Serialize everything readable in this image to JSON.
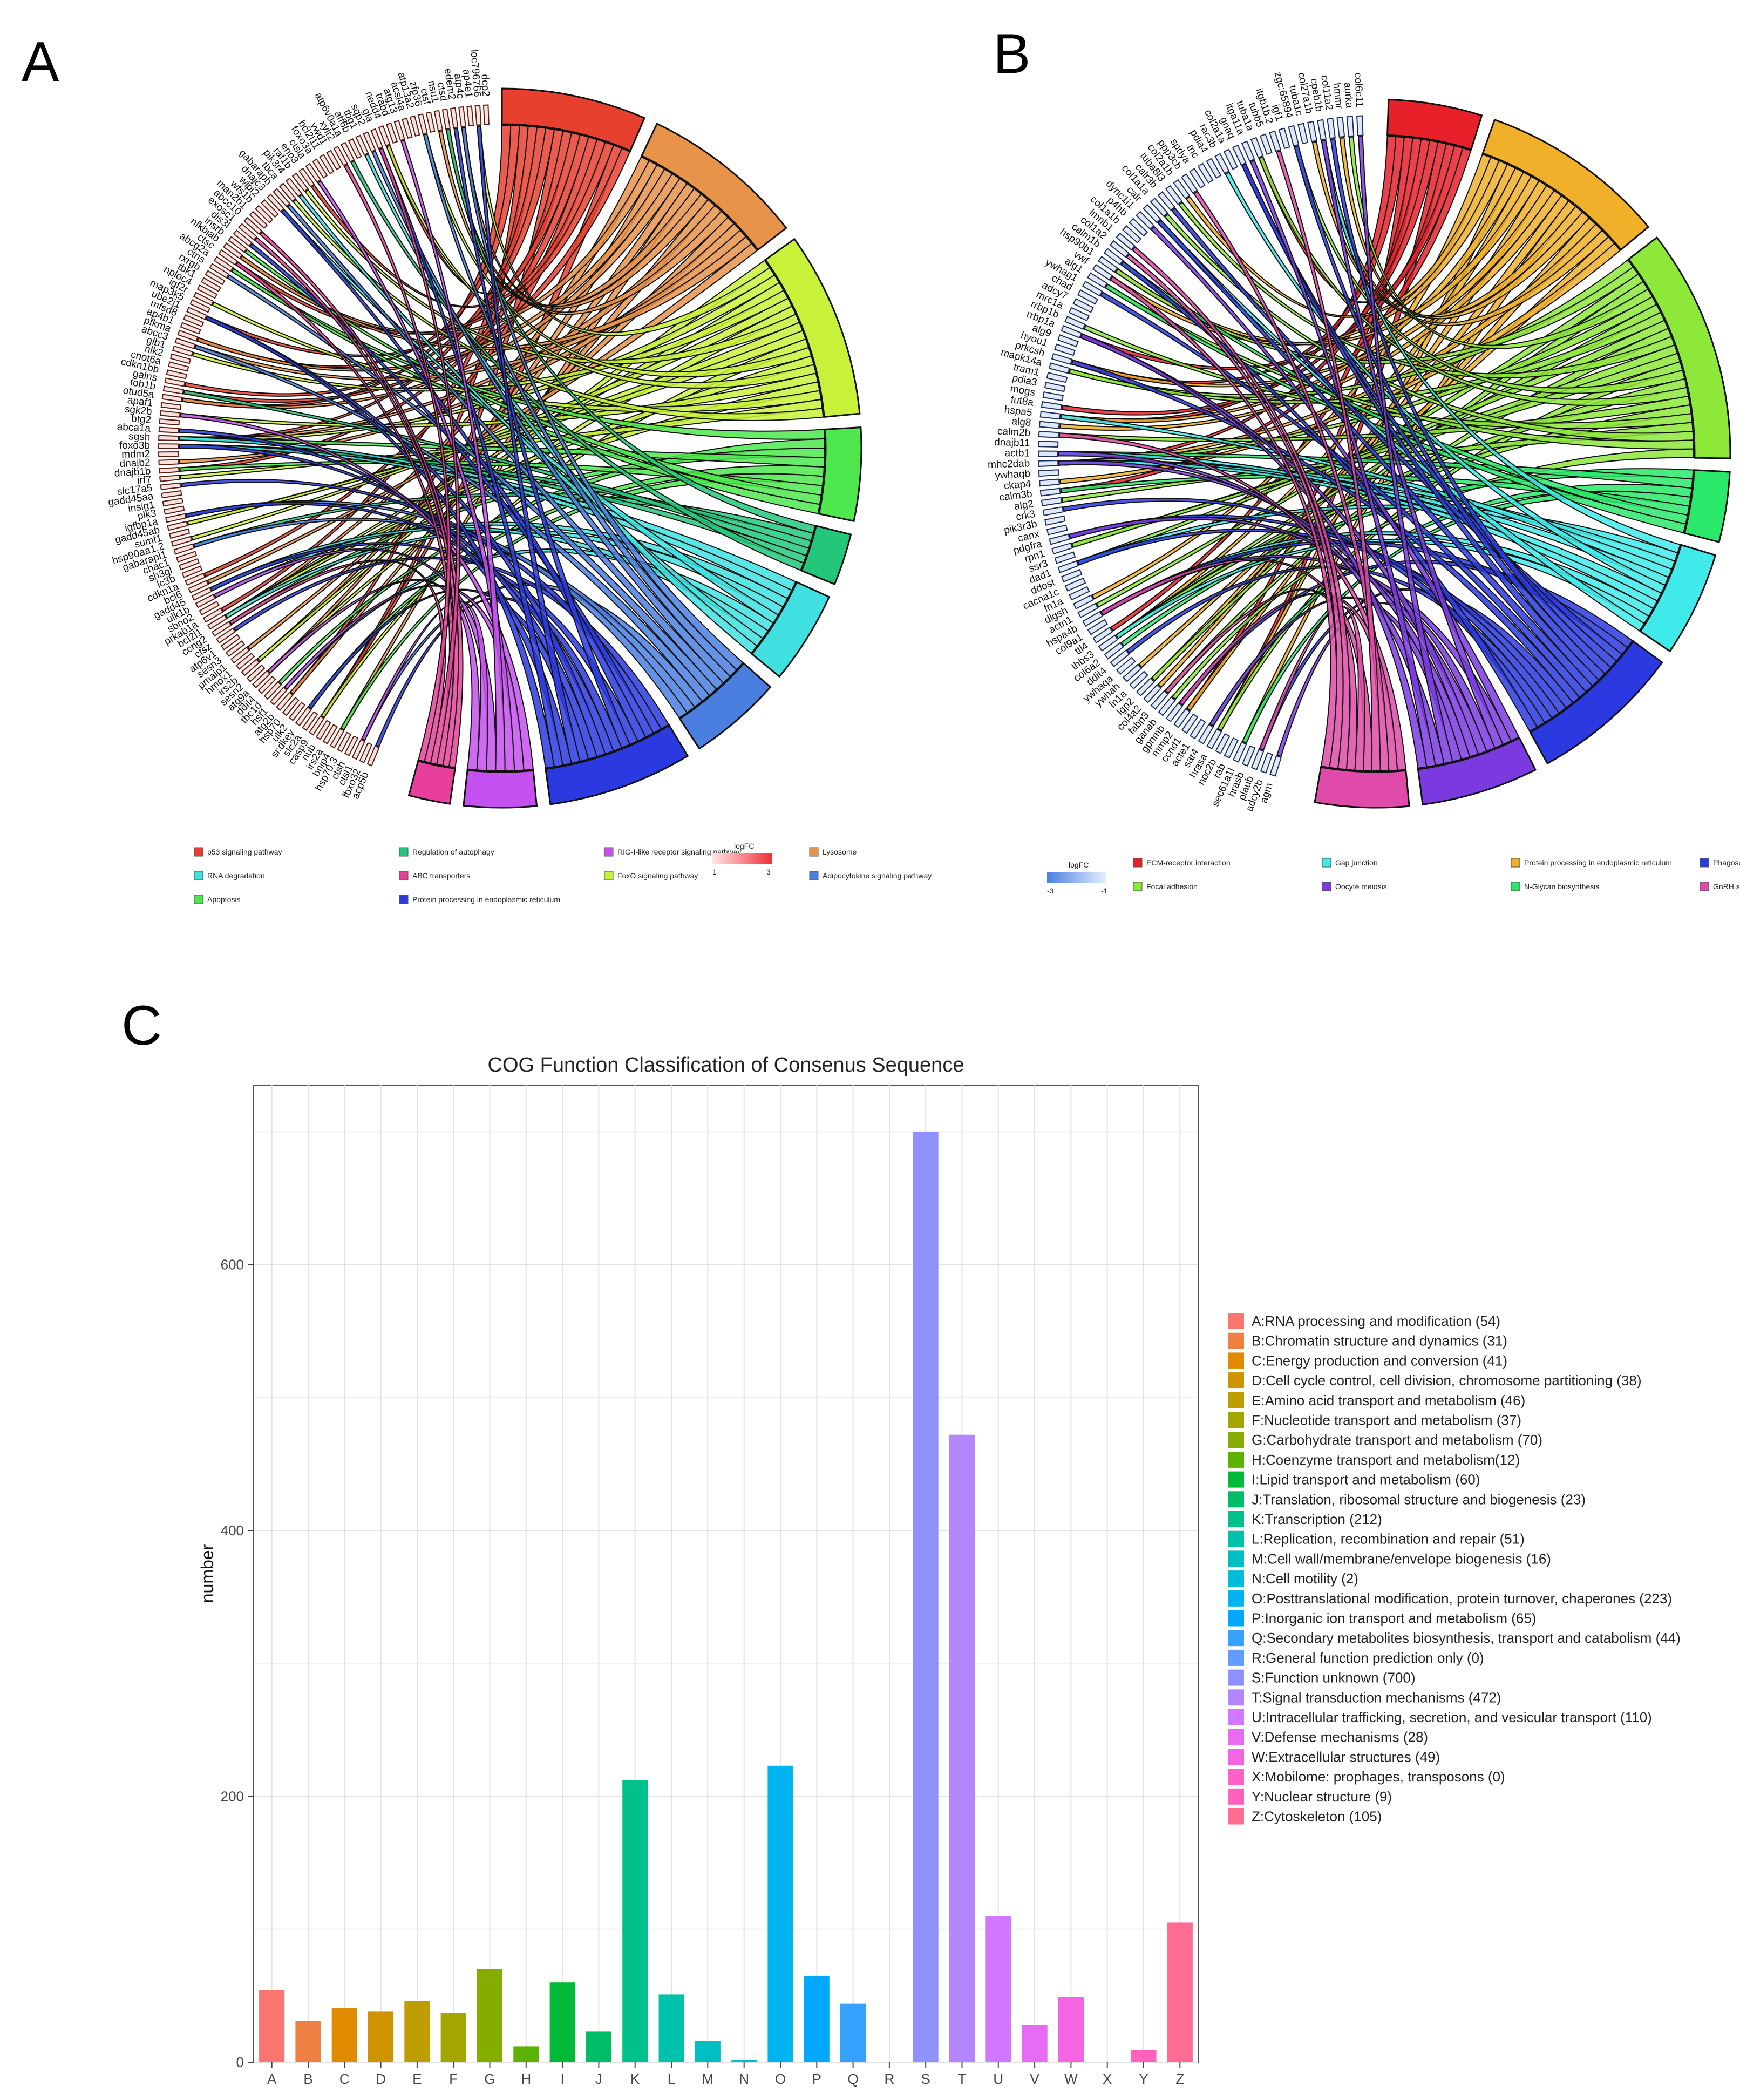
{
  "panels": {
    "a": "A",
    "b": "B",
    "c": "C"
  },
  "chart_data": [
    {
      "type": "chord",
      "panel": "A",
      "pathways": [
        {
          "name": "p53 signaling pathway",
          "color": "#e8402f"
        },
        {
          "name": "Regulation of autophagy",
          "color": "#22c77a"
        },
        {
          "name": "RIG-I-like receptor signaling pathway",
          "color": "#c550f0"
        },
        {
          "name": "Lysosome",
          "color": "#e8934a"
        },
        {
          "name": "RNA degradation",
          "color": "#40e0e0"
        },
        {
          "name": "ABC transporters",
          "color": "#e8409a"
        },
        {
          "name": "FoxO signaling pathway",
          "color": "#c8f23a"
        },
        {
          "name": "Adipocytokine signaling pathway",
          "color": "#4a7fe0"
        },
        {
          "name": "Apoptosis",
          "color": "#4ee84e"
        },
        {
          "name": "Protein processing in endoplasmic reticulum",
          "color": "#2a3ae0"
        }
      ],
      "logfc_legend": {
        "title": "logFC",
        "min": "1",
        "max": "3",
        "low_color": "#ffe6e6",
        "high_color": "#f0303a"
      },
      "genes": [
        "acp5b",
        "fbxo32",
        "ctsl1",
        "ctsh",
        "hsp70.3",
        "bnip4",
        "irs2a",
        "nub",
        "casp9",
        "slc2a",
        "si:dkey",
        "ulk2",
        "hsp70",
        "atg2b",
        "hsf1",
        "tbc1d",
        "ddit4",
        "atg9a",
        "sesn2",
        "irs2b",
        "hmox1",
        "pmaip1",
        "sesn3",
        "atp6v1",
        "ctsz",
        "ccng2",
        "bcl2l1",
        "prkab1a",
        "sbno2",
        "ulk1b",
        "gadd45",
        "bcl6",
        "cdkn1a",
        "lc3b",
        "sh3gl",
        "chac1",
        "gabarapl1",
        "hsp90aa1.2",
        "sumf1",
        "gadd45ab",
        "igfbp1a",
        "plk3",
        "insig1",
        "gadd45aa",
        "slc17a5",
        "irf7",
        "dnajb1b",
        "dnajb2",
        "mdm2",
        "foxo3b",
        "sgsh",
        "abca1a",
        "btg2",
        "sgk2b",
        "apaf1",
        "otud5a",
        "tob1b",
        "galns",
        "cdkn1bb",
        "cnot6a",
        "nlk2",
        "glb1",
        "abcc3",
        "pfkma",
        "ap4b1",
        "mfsd8",
        "ube2j1",
        "map3k5",
        "igf2r",
        "nploc4",
        "tbk1",
        "rxrgb",
        "ctns",
        "abcg2a",
        "ctsc",
        "nfkbiab",
        "insrb",
        "dis3l",
        "exosc1",
        "abcc10",
        "man2b1",
        "wfs1b",
        "wipi2",
        "dnajc3",
        "gabarapb",
        "tbca",
        "pik3r4",
        "raf1b",
        "eno3",
        "ctsla",
        "foxo3a",
        "bcl2l11",
        "ywd1",
        "xylt2",
        "atp6v0a1a",
        "atf6b",
        "tbg1",
        "sqp2",
        "gla",
        "nedd4",
        "trabd",
        "atg13",
        "acsl4a",
        "atp13a2",
        "zfp36",
        "ctsf",
        "nsu1",
        "ctsd",
        "edem2",
        "atp4c",
        "ap4e1",
        "loc796766",
        "dcp2"
      ],
      "tracks": [
        "p53 signaling pathway",
        "Lysosome",
        "FoxO signaling pathway",
        "Apoptosis",
        "Regulation of autophagy",
        "RNA degradation",
        "Adipocytokine signaling pathway",
        "Protein processing in endoplasmic reticulum",
        "RIG-I-like receptor signaling pathway",
        "ABC transporters"
      ],
      "track_weights": [
        14,
        16,
        18,
        9,
        5,
        9,
        9,
        14,
        7,
        4
      ]
    },
    {
      "type": "chord",
      "panel": "B",
      "pathways": [
        {
          "name": "ECM-receptor interaction",
          "color": "#e8202a"
        },
        {
          "name": "Gap junction",
          "color": "#40eaea"
        },
        {
          "name": "Protein processing in endoplasmic reticulum",
          "color": "#f0b02a"
        },
        {
          "name": "Phagosome",
          "color": "#2a3ae0"
        },
        {
          "name": "Focal adhesion",
          "color": "#8ee83a"
        },
        {
          "name": "Oocyte meiosis",
          "color": "#7a3ae0"
        },
        {
          "name": "N-Glycan biosynthesis",
          "color": "#2ae86a"
        },
        {
          "name": "GnRH signaling pathway",
          "color": "#e04aa8"
        }
      ],
      "logfc_legend": {
        "title": "logFC",
        "min": "-3",
        "max": "-1",
        "low_color": "#4a7fe0",
        "high_color": "#e6f0ff"
      },
      "genes": [
        "agrn",
        "adcy2b",
        "plaub",
        "hrasb",
        "sec61a1l",
        "rab",
        "noc2b",
        "hrasa",
        "sar4",
        "acte1",
        "ccnd1",
        "mmp2",
        "gpnmb",
        "ganab",
        "fabp3",
        "col4a2",
        "lgp2",
        "fn1a",
        "ywhah",
        "ywhaqa",
        "ddit4",
        "col6a2",
        "thbs3",
        "ttl4",
        "col9a1",
        "hspa4b",
        "actn1",
        "dlgsh",
        "fn1a",
        "cacna1c",
        "ddost",
        "dad1",
        "ssr3",
        "rpn1",
        "pdgfra",
        "canx",
        "pik3r3b",
        "crk3",
        "alg2",
        "calm3b",
        "ckap4",
        "ywhaqb",
        "mhc2dab",
        "actb1",
        "dnajb11",
        "calm2b",
        "alg8",
        "hspa5",
        "fut8a",
        "mogs",
        "pdia3",
        "tram1",
        "mapk14a",
        "prkcsh",
        "hyou1",
        "alg9",
        "rrbp1a",
        "rrbp1b",
        "mrc1a",
        "adcy7",
        "chad",
        "ywhag1",
        "alg1",
        "vwf",
        "hsp90b1",
        "calm1b",
        "col1a2",
        "lmnb1",
        "col1a1b",
        "p4hb",
        "dync1i1",
        "calr",
        "col1a1a",
        "calr3b",
        "tuba8l3",
        "col2a1b",
        "ppp3cb",
        "spdya",
        "tnc",
        "pdia4",
        "rac3b",
        "col2a1a",
        "gnaq",
        "itga11a",
        "tuba1a",
        "tubb5",
        "itgb1b.2",
        "igf1",
        "zgc:65894",
        "tuba1c",
        "col27a1b",
        "cpeb1b",
        "col11a2",
        "hmmr",
        "aurka",
        "col6c11"
      ],
      "tracks": [
        "ECM-receptor interaction",
        "Protein processing in endoplasmic reticulum",
        "Focal adhesion",
        "N-Glycan biosynthesis",
        "Gap junction",
        "Phagosome",
        "Oocyte meiosis",
        "GnRH signaling pathway"
      ],
      "track_weights": [
        8,
        16,
        20,
        6,
        9,
        13,
        10,
        8
      ]
    },
    {
      "type": "bar",
      "panel": "C",
      "title": "COG Function Classification of Consenus Sequence",
      "xlabel": "",
      "ylabel": "number",
      "ylim": [
        0,
        735
      ],
      "yticks": [
        0,
        200,
        400,
        600
      ],
      "grid": true,
      "legend_position": "right",
      "categories": [
        "A",
        "B",
        "C",
        "D",
        "E",
        "F",
        "G",
        "H",
        "I",
        "J",
        "K",
        "L",
        "M",
        "N",
        "O",
        "P",
        "Q",
        "R",
        "S",
        "T",
        "U",
        "V",
        "W",
        "X",
        "Y",
        "Z"
      ],
      "values": [
        54,
        31,
        41,
        38,
        46,
        37,
        70,
        12,
        60,
        23,
        212,
        51,
        16,
        2,
        223,
        65,
        44,
        0,
        700,
        472,
        110,
        28,
        49,
        0,
        9,
        105
      ],
      "colors": [
        "#f8766d",
        "#ee8043",
        "#e08b00",
        "#d09400",
        "#bd9d00",
        "#a3a500",
        "#85ad00",
        "#5bb300",
        "#00ba38",
        "#00be67",
        "#00c08b",
        "#00c1a9",
        "#00bfc4",
        "#00bbdc",
        "#00b4ef",
        "#00a9ff",
        "#35a2ff",
        "#619cff",
        "#8f91ff",
        "#b385ff",
        "#d277ff",
        "#e76bf3",
        "#f564e3",
        "#ff61c9",
        "#ff62bc",
        "#ff6c91"
      ],
      "legend": [
        "A:RNA processing and modification (54)",
        "B:Chromatin structure and dynamics (31)",
        "C:Energy production and conversion (41)",
        "D:Cell cycle control, cell division, chromosome partitioning (38)",
        "E:Amino acid transport and metabolism (46)",
        "F:Nucleotide transport and metabolism (37)",
        "G:Carbohydrate transport and metabolism (70)",
        "H:Coenzyme transport and metabolism(12)",
        "I:Lipid transport and metabolism (60)",
        "J:Translation, ribosomal structure and biogenesis (23)",
        "K:Transcription (212)",
        "L:Replication, recombination and repair (51)",
        "M:Cell wall/membrane/envelope biogenesis (16)",
        "N:Cell motility (2)",
        "O:Posttranslational modification, protein turnover, chaperones (223)",
        "P:Inorganic ion transport and metabolism (65)",
        "Q:Secondary metabolites biosynthesis, transport and catabolism (44)",
        "R:General function prediction only (0)",
        "S:Function unknown (700)",
        "T:Signal transduction mechanisms (472)",
        "U:Intracellular trafficking, secretion, and vesicular transport (110)",
        "V:Defense mechanisms (28)",
        "W:Extracellular structures (49)",
        "X:Mobilome: prophages, transposons (0)",
        "Y:Nuclear structure (9)",
        "Z:Cytoskeleton (105)"
      ]
    }
  ]
}
